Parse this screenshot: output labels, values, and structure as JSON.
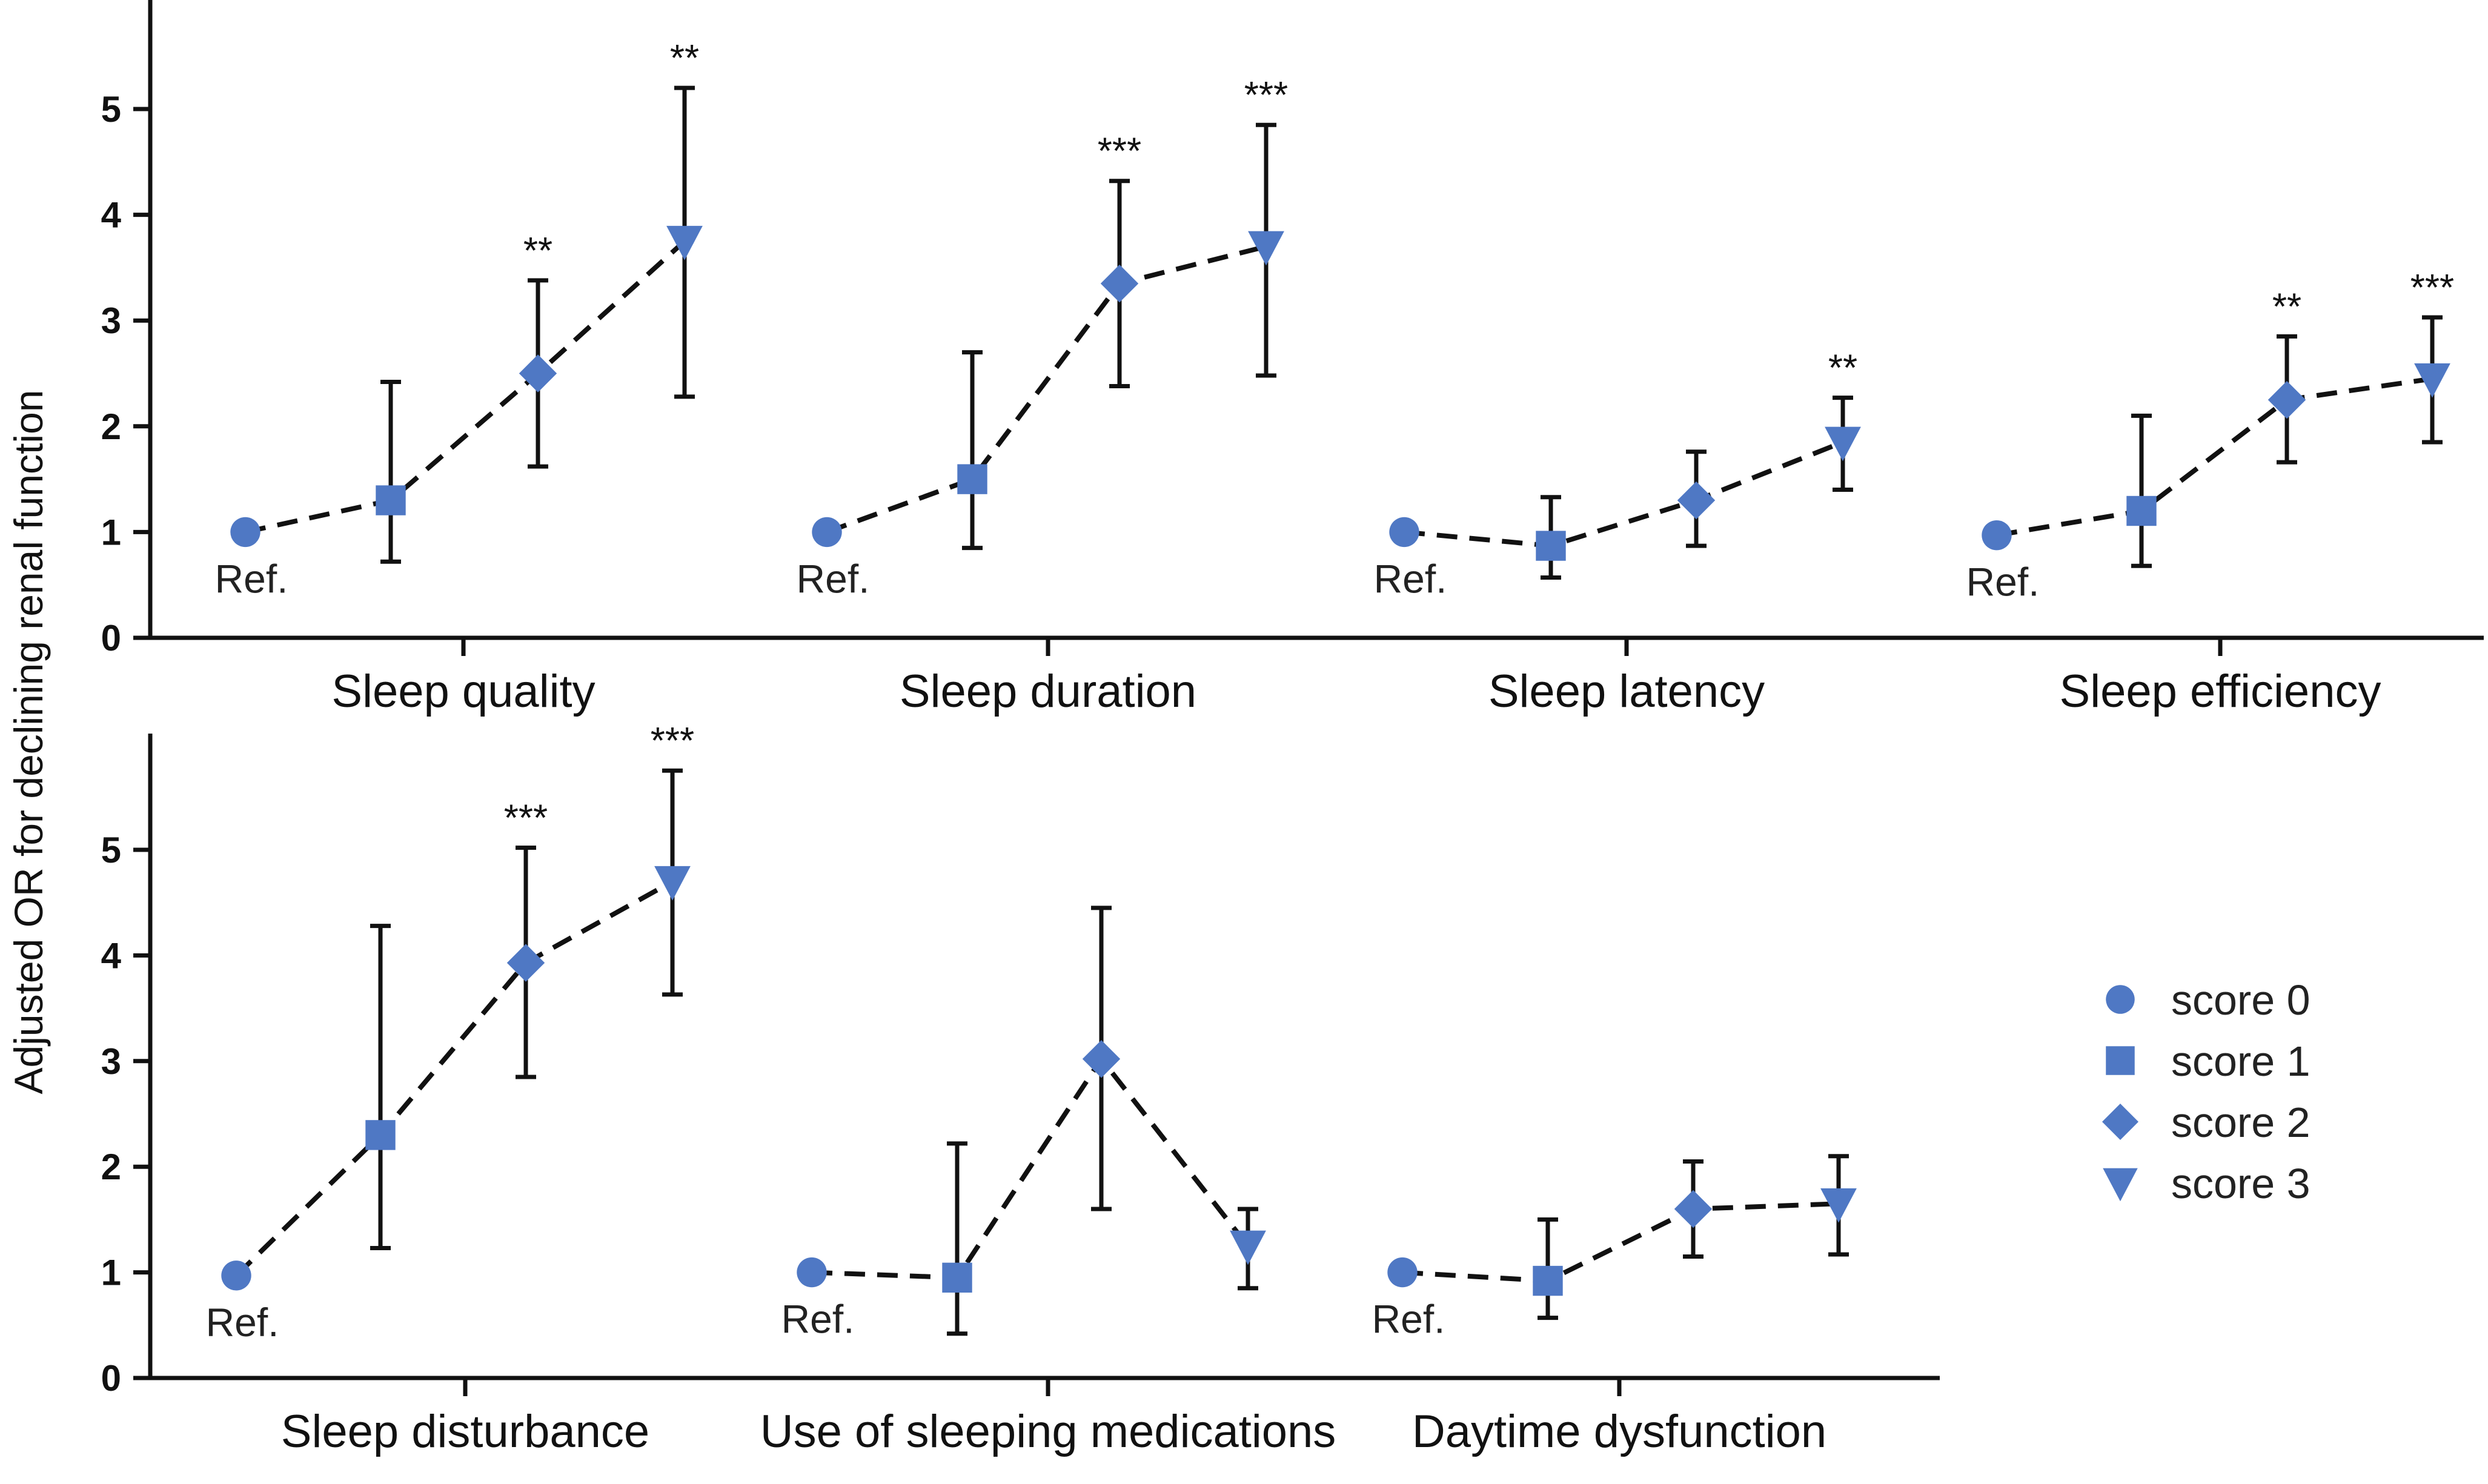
{
  "chart_data": {
    "type": "scatter",
    "ylabel": "Adjusted OR for declining renal function",
    "ref_label": "Ref.",
    "marker_color": "#4f78c4",
    "legend": [
      {
        "name": "score 0",
        "marker": "circle"
      },
      {
        "name": "score 1",
        "marker": "square"
      },
      {
        "name": "score 2",
        "marker": "diamond"
      },
      {
        "name": "score 3",
        "marker": "triangle-down"
      }
    ],
    "panels": [
      {
        "yticks": [
          "0",
          "1",
          "2",
          "3",
          "4",
          "5"
        ],
        "ylim": [
          0,
          6
        ],
        "groups": [
          {
            "label": "Sleep quality",
            "points": [
              {
                "score": 0,
                "or": 1.0,
                "lo": null,
                "hi": null,
                "sig": ""
              },
              {
                "score": 1,
                "or": 1.3,
                "lo": 0.72,
                "hi": 2.42,
                "sig": ""
              },
              {
                "score": 2,
                "or": 2.5,
                "lo": 1.62,
                "hi": 3.38,
                "sig": "**"
              },
              {
                "score": 3,
                "or": 3.75,
                "lo": 2.28,
                "hi": 5.2,
                "sig": "**"
              }
            ]
          },
          {
            "label": "Sleep duration",
            "points": [
              {
                "score": 0,
                "or": 1.0,
                "lo": null,
                "hi": null,
                "sig": ""
              },
              {
                "score": 1,
                "or": 1.5,
                "lo": 0.85,
                "hi": 2.7,
                "sig": ""
              },
              {
                "score": 2,
                "or": 3.35,
                "lo": 2.38,
                "hi": 4.32,
                "sig": "***"
              },
              {
                "score": 3,
                "or": 3.7,
                "lo": 2.48,
                "hi": 4.85,
                "sig": "***"
              }
            ]
          },
          {
            "label": "Sleep latency",
            "points": [
              {
                "score": 0,
                "or": 1.0,
                "lo": null,
                "hi": null,
                "sig": ""
              },
              {
                "score": 1,
                "or": 0.87,
                "lo": 0.57,
                "hi": 1.33,
                "sig": ""
              },
              {
                "score": 2,
                "or": 1.3,
                "lo": 0.87,
                "hi": 1.76,
                "sig": ""
              },
              {
                "score": 3,
                "or": 1.85,
                "lo": 1.4,
                "hi": 2.27,
                "sig": "**"
              }
            ]
          },
          {
            "label": "Sleep efficiency",
            "points": [
              {
                "score": 0,
                "or": 0.97,
                "lo": null,
                "hi": null,
                "sig": ""
              },
              {
                "score": 1,
                "or": 1.2,
                "lo": 0.68,
                "hi": 2.1,
                "sig": ""
              },
              {
                "score": 2,
                "or": 2.25,
                "lo": 1.66,
                "hi": 2.85,
                "sig": "**"
              },
              {
                "score": 3,
                "or": 2.45,
                "lo": 1.85,
                "hi": 3.03,
                "sig": "***"
              }
            ]
          }
        ]
      },
      {
        "yticks": [
          "0",
          "1",
          "2",
          "3",
          "4",
          "5"
        ],
        "ylim": [
          0,
          6
        ],
        "groups": [
          {
            "label": "Sleep disturbance",
            "points": [
              {
                "score": 0,
                "or": 0.97,
                "lo": null,
                "hi": null,
                "sig": ""
              },
              {
                "score": 1,
                "or": 2.3,
                "lo": 1.23,
                "hi": 4.28,
                "sig": ""
              },
              {
                "score": 2,
                "or": 3.93,
                "lo": 2.85,
                "hi": 5.02,
                "sig": "***"
              },
              {
                "score": 3,
                "or": 4.7,
                "lo": 3.63,
                "hi": 5.75,
                "sig": "***"
              }
            ]
          },
          {
            "label": "Use of sleeping medications",
            "points": [
              {
                "score": 0,
                "or": 1.0,
                "lo": null,
                "hi": null,
                "sig": ""
              },
              {
                "score": 1,
                "or": 0.95,
                "lo": 0.42,
                "hi": 2.22,
                "sig": ""
              },
              {
                "score": 2,
                "or": 3.02,
                "lo": 1.6,
                "hi": 4.45,
                "sig": ""
              },
              {
                "score": 3,
                "or": 1.25,
                "lo": 0.85,
                "hi": 1.6,
                "sig": ""
              }
            ]
          },
          {
            "label": "Daytime dysfunction",
            "points": [
              {
                "score": 0,
                "or": 1.0,
                "lo": null,
                "hi": null,
                "sig": ""
              },
              {
                "score": 1,
                "or": 0.92,
                "lo": 0.57,
                "hi": 1.5,
                "sig": ""
              },
              {
                "score": 2,
                "or": 1.6,
                "lo": 1.15,
                "hi": 2.05,
                "sig": ""
              },
              {
                "score": 3,
                "or": 1.65,
                "lo": 1.17,
                "hi": 2.1,
                "sig": ""
              }
            ]
          }
        ]
      }
    ]
  }
}
